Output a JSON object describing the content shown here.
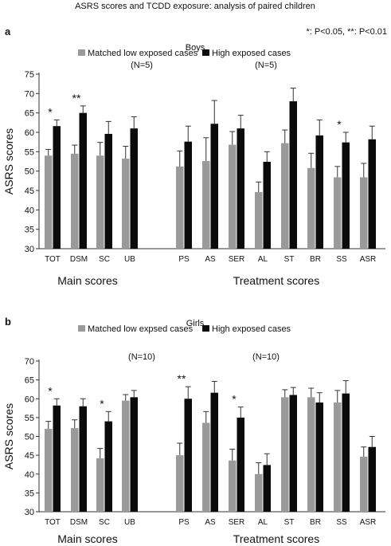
{
  "figure": {
    "title": "ASRS scores and TCDD exposure: analysis of paired children",
    "significance_note": "*: P<0.05, **: P<0.01"
  },
  "colors": {
    "low": "#9a9a9a",
    "high": "#0b0b0b",
    "axis": "#333333",
    "text": "#111111"
  },
  "chart_data": [
    {
      "panel_label": "a",
      "type": "bar",
      "title": "Boys",
      "ylabel": "ASRS scores",
      "ylim": [
        30,
        75
      ],
      "yticks": [
        30,
        35,
        40,
        45,
        50,
        55,
        60,
        65,
        70,
        75
      ],
      "grid": false,
      "legend_position": "top",
      "categories": [
        "TOT",
        "DSM",
        "SC",
        "UB",
        "PS",
        "AS",
        "SER",
        "AL",
        "ST",
        "BR",
        "SS",
        "ASR"
      ],
      "group_labels": [
        "Main scores",
        "Treatment scores"
      ],
      "series": [
        {
          "name": "Matched low exposed cases",
          "n_label": "(N=5)",
          "values": [
            54,
            54.5,
            54,
            53.2,
            51.2,
            52.6,
            56.8,
            44.6,
            57.2,
            50.8,
            48.4,
            48.4
          ],
          "errors": [
            1.6,
            2.2,
            3.4,
            3.2,
            4,
            6,
            3.4,
            2.6,
            3.4,
            3.8,
            2.8,
            3.6
          ]
        },
        {
          "name": "High exposed cases",
          "n_label": "(N=5)",
          "values": [
            61.6,
            65,
            59.6,
            61,
            57.6,
            62.2,
            61,
            52.4,
            68,
            59.2,
            57.4,
            58.2
          ],
          "errors": [
            1.6,
            1.8,
            3.2,
            3,
            4,
            6,
            3.4,
            2.6,
            3.4,
            4,
            2.6,
            3.4
          ]
        }
      ],
      "significance": [
        {
          "category": "TOT",
          "mark": "*"
        },
        {
          "category": "DSM",
          "mark": "**"
        },
        {
          "category": "SS",
          "mark": "*"
        }
      ]
    },
    {
      "panel_label": "b",
      "type": "bar",
      "title": "Girls",
      "ylabel": "ASRS scores",
      "ylim": [
        30,
        70
      ],
      "yticks": [
        30,
        35,
        40,
        45,
        50,
        55,
        60,
        65,
        70
      ],
      "grid": false,
      "legend_position": "top",
      "categories": [
        "TOT",
        "DSM",
        "SC",
        "UB",
        "PS",
        "AS",
        "SER",
        "AL",
        "ST",
        "BR",
        "SS",
        "ASR"
      ],
      "group_labels": [
        "Main scores",
        "Treatment scores"
      ],
      "series": [
        {
          "name": "Matched low expsed cases",
          "n_label": "(N=10)",
          "values": [
            52,
            52.2,
            44.2,
            59.5,
            45,
            53.6,
            43.6,
            40,
            60.4,
            60.4,
            59,
            44.6
          ],
          "errors": [
            2,
            2.2,
            2.6,
            1.6,
            3.2,
            3,
            3,
            3,
            2,
            2.4,
            3.2,
            2.6
          ]
        },
        {
          "name": "High exposed cases",
          "n_label": "(N=10)",
          "values": [
            58.2,
            58,
            54,
            60.4,
            60,
            61.6,
            55,
            42.4,
            61,
            59,
            61.4,
            47.2
          ],
          "errors": [
            1.8,
            2,
            2.6,
            1.8,
            3.2,
            3,
            2.8,
            3,
            2,
            2.6,
            3.4,
            2.8
          ]
        }
      ],
      "significance": [
        {
          "category": "TOT",
          "mark": "*"
        },
        {
          "category": "SC",
          "mark": "*"
        },
        {
          "category": "PS",
          "mark": "**"
        },
        {
          "category": "SER",
          "mark": "*"
        }
      ]
    }
  ]
}
